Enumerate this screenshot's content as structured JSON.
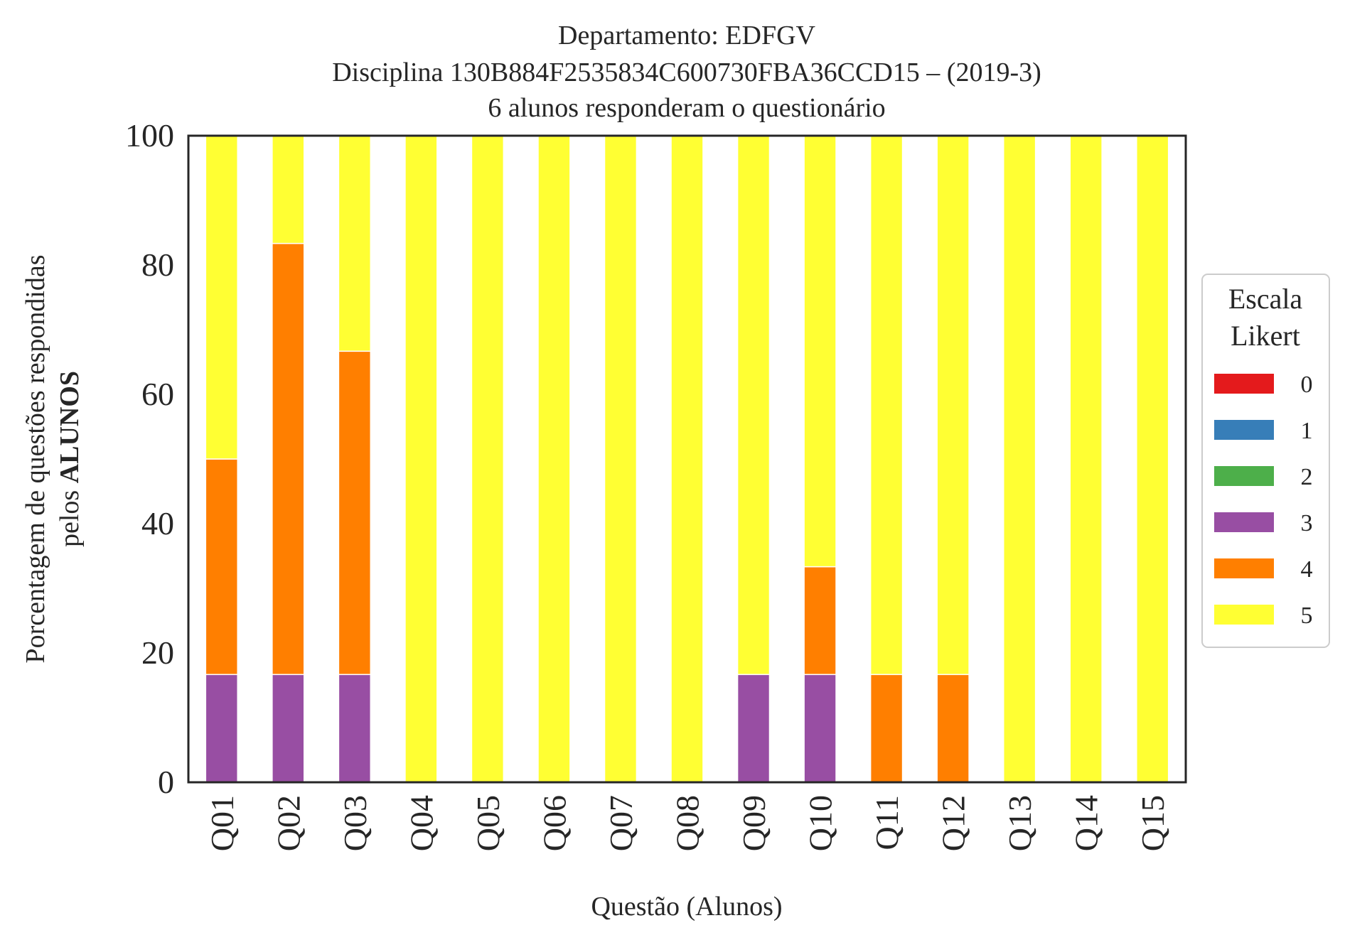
{
  "chart_data": {
    "type": "bar",
    "stacked": true,
    "title_lines": [
      "Departamento: EDFGV",
      "Disciplina 130B884F2535834C600730FBA36CCD15 – (2019-3)",
      "6 alunos responderam o questionário"
    ],
    "xlabel": "Questão (Alunos)",
    "ylabel_line1": "Porcentagem de questões respondidas",
    "ylabel_line2_prefix": "pelos ",
    "ylabel_line2_bold": "ALUNOS",
    "ylim": [
      0,
      100
    ],
    "yticks": [
      "0",
      "20",
      "40",
      "60",
      "80",
      "100"
    ],
    "categories": [
      "Q01",
      "Q02",
      "Q03",
      "Q04",
      "Q05",
      "Q06",
      "Q07",
      "Q08",
      "Q09",
      "Q10",
      "Q11",
      "Q12",
      "Q13",
      "Q14",
      "Q15"
    ],
    "legend": {
      "title_lines": [
        "Escala",
        "Likert"
      ],
      "position": "right"
    },
    "series": [
      {
        "name": "0",
        "color": "#e41a1c",
        "values": [
          0,
          0,
          0,
          0,
          0,
          0,
          0,
          0,
          0,
          0,
          0,
          0,
          0,
          0,
          0
        ]
      },
      {
        "name": "1",
        "color": "#377eb8",
        "values": [
          0,
          0,
          0,
          0,
          0,
          0,
          0,
          0,
          0,
          0,
          0,
          0,
          0,
          0,
          0
        ]
      },
      {
        "name": "2",
        "color": "#4daf4a",
        "values": [
          0,
          0,
          0,
          0,
          0,
          0,
          0,
          0,
          0,
          0,
          0,
          0,
          0,
          0,
          0
        ]
      },
      {
        "name": "3",
        "color": "#984ea3",
        "values": [
          16.67,
          16.67,
          16.67,
          0,
          0,
          0,
          0,
          0,
          16.67,
          16.67,
          0,
          0,
          0,
          0,
          0
        ]
      },
      {
        "name": "4",
        "color": "#ff7f00",
        "values": [
          33.33,
          66.67,
          50,
          0,
          0,
          0,
          0,
          0,
          0,
          16.67,
          16.67,
          16.67,
          0,
          0,
          0
        ]
      },
      {
        "name": "5",
        "color": "#ffff33",
        "values": [
          50,
          16.67,
          33.33,
          100,
          100,
          100,
          100,
          100,
          83.33,
          66.67,
          83.33,
          83.33,
          100,
          100,
          100
        ]
      }
    ]
  }
}
